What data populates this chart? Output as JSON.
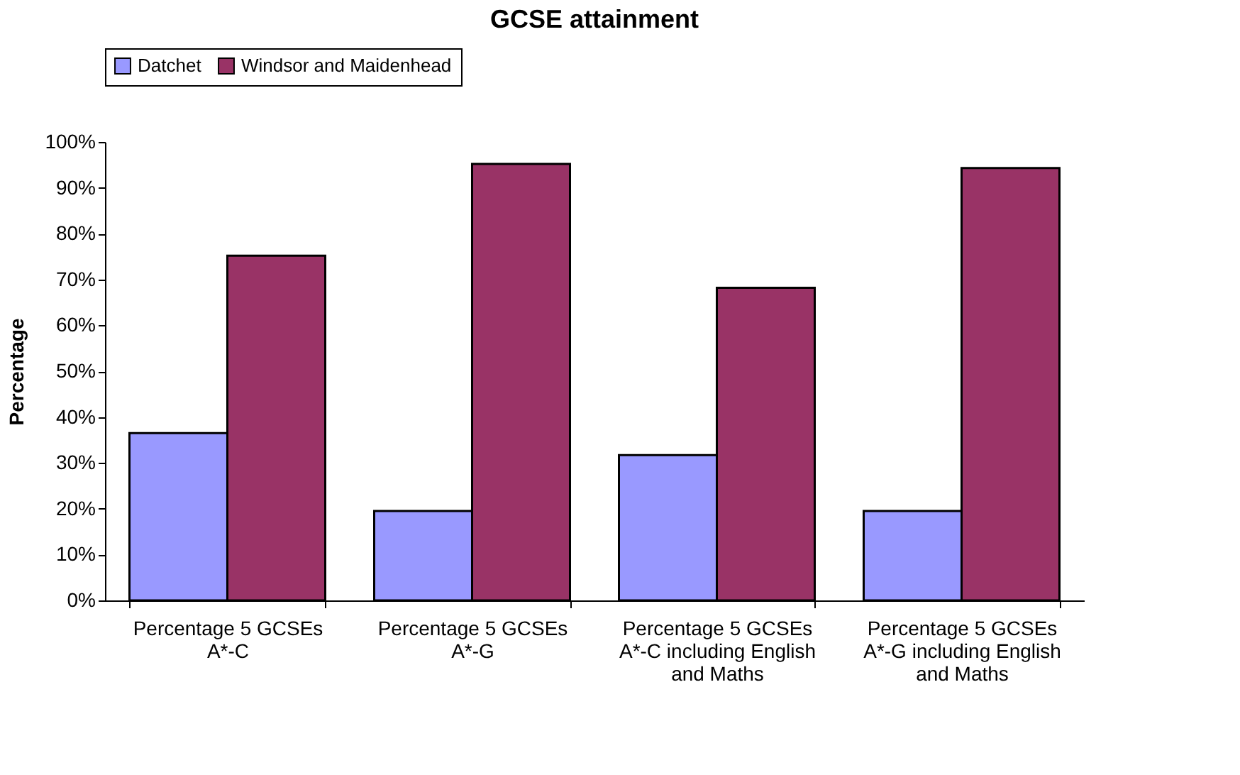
{
  "chart_data": {
    "type": "bar",
    "title": "GCSE attainment",
    "ylabel": "Percentage",
    "categories": [
      "Percentage 5 GCSEs A*-C",
      "Percentage 5 GCSEs A*-G",
      "Percentage 5 GCSEs A*-C including English and Maths",
      "Percentage 5 GCSEs A*-G including English and Maths"
    ],
    "series": [
      {
        "name": "Datchet",
        "color": "#9999ff",
        "values": [
          36.5,
          19.5,
          31.7,
          19.5
        ]
      },
      {
        "name": "Windsor and Maidenhead",
        "color": "#993366",
        "values": [
          75.2,
          95.2,
          68.2,
          94.3
        ]
      }
    ],
    "ylim": [
      0,
      100
    ],
    "yticks": [
      {
        "value": 0,
        "label": "0%"
      },
      {
        "value": 10,
        "label": "10%"
      },
      {
        "value": 20,
        "label": "20%"
      },
      {
        "value": 30,
        "label": "30%"
      },
      {
        "value": 40,
        "label": "40%"
      },
      {
        "value": 50,
        "label": "50%"
      },
      {
        "value": 60,
        "label": "60%"
      },
      {
        "value": 70,
        "label": "70%"
      },
      {
        "value": 80,
        "label": "80%"
      },
      {
        "value": 90,
        "label": "90%"
      },
      {
        "value": 100,
        "label": "100%"
      }
    ],
    "grid": false,
    "legend": "top"
  }
}
